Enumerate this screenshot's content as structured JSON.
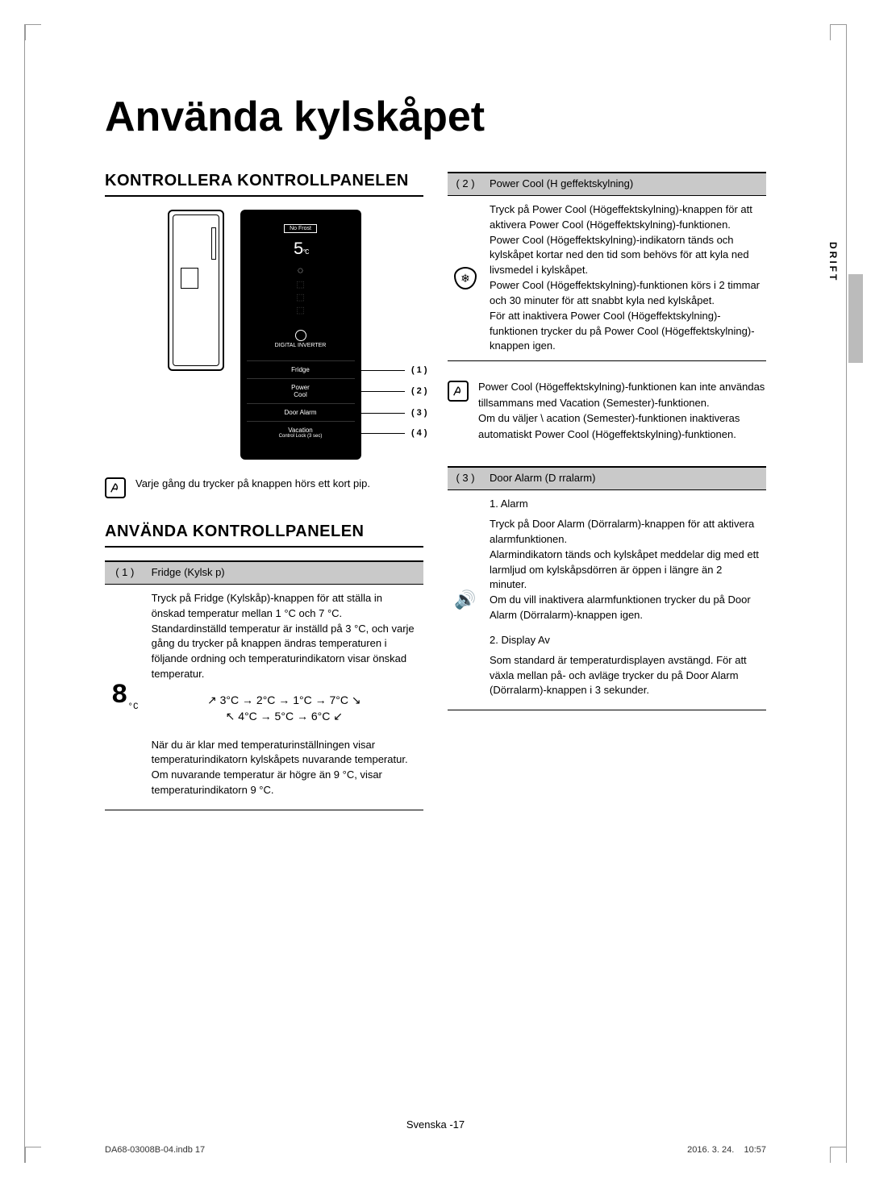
{
  "page": {
    "title": "Använda kylskåpet",
    "side_tab": "DRIFT",
    "footer_lang": "Svenska",
    "footer_page": "-17",
    "meta_left": "DA68-03008B-04.indb   17",
    "meta_right": "2016. 3. 24.      10:57"
  },
  "left": {
    "h2a": "KONTROLLERA KONTROLLPANELEN",
    "panel": {
      "nofrost": "No Frost",
      "temp": "5",
      "temp_unit": "°C",
      "inverter_line1": "DIGITAL INVERTER",
      "buttons": [
        {
          "label": "Fridge",
          "num": "( 1 )"
        },
        {
          "label": "Power\nCool",
          "num": "( 2 )"
        },
        {
          "label": "Door Alarm",
          "num": "( 3 )"
        },
        {
          "label": "Vacation",
          "sub": "Control Lock (3 sec)",
          "num": "( 4 )"
        }
      ]
    },
    "note1": "Varje gång du trycker på knappen hörs ett kort pip.",
    "h2b": "ANVÄNDA KONTROLLPANELEN",
    "sec1": {
      "num": "( 1 )",
      "title": "Fridge (Kylsk p)",
      "body1": "Tryck på Fridge (Kylskåp)-knappen för att ställa in önskad temperatur mellan 1 °C och 7 °C.\nStandardinställd temperatur är inställd på 3 °C, och varje gång du trycker på knappen ändras temperaturen i följande ordning och temperaturindikatorn visar önskad temperatur.",
      "digit": "8",
      "digit_unit": "°C",
      "cycle_top": "3°C → 2°C → 1°C → 7°C",
      "cycle_bot": "4°C → 5°C → 6°C",
      "body2": "När du är klar med temperaturinställningen visar temperaturindikatorn kylskåpets nuvarande temperatur.\nOm nuvarande temperatur är högre än 9 °C, visar temperaturindikatorn 9 °C."
    }
  },
  "right": {
    "sec2": {
      "num": "( 2 )",
      "title": "Power Cool (H geffektskylning)",
      "body": "Tryck på Power Cool (Högeffektskylning)-knappen för att aktivera Power Cool (Högeffektskylning)-funktionen.\nPower Cool (Högeffektskylning)-indikatorn tänds och kylskåpet kortar ned den tid som behövs för att kyla ned livsmedel i kylskåpet.\nPower Cool (Högeffektskylning)-funktionen körs i 2 timmar och 30 minuter för att snabbt kyla ned kylskåpet.\nFör att inaktivera Power Cool (Högeffektskylning)-funktionen trycker du på Power Cool (Högeffektskylning)-knappen igen."
    },
    "note2": "Power Cool (Högeffektskylning)-funktionen kan inte användas tillsammans med Vacation (Semester)-funktionen.\nOm du väljer \\ acation (Semester)-funktionen ina‌ktiveras automatiskt Power Cool (Högeffektskylning)-funktionen.",
    "sec3": {
      "num": "( 3 )",
      "title": "Door Alarm (D rralarm)",
      "item1_title": "1.  Alarm",
      "item1_body": "Tryck på Door Alarm (Dörralarm)-knappen för att aktivera alarmfunktionen.\nAlarmindikatorn tänds och kylskåpet meddelar dig med ett larmljud om kylskåpsdörren är öppen i längre än 2 minuter.\nOm du vill inaktivera alarmfunktionen trycker du på Door Alarm (Dörralarm)-knappen igen.",
      "item2_title": "2.  Display Av",
      "item2_body": "Som standard är temperaturdisplayen avstängd. För att växla mellan på- och avläge trycker du på Door Alarm (Dörralarm)-knappen i 3 sekunder."
    }
  }
}
